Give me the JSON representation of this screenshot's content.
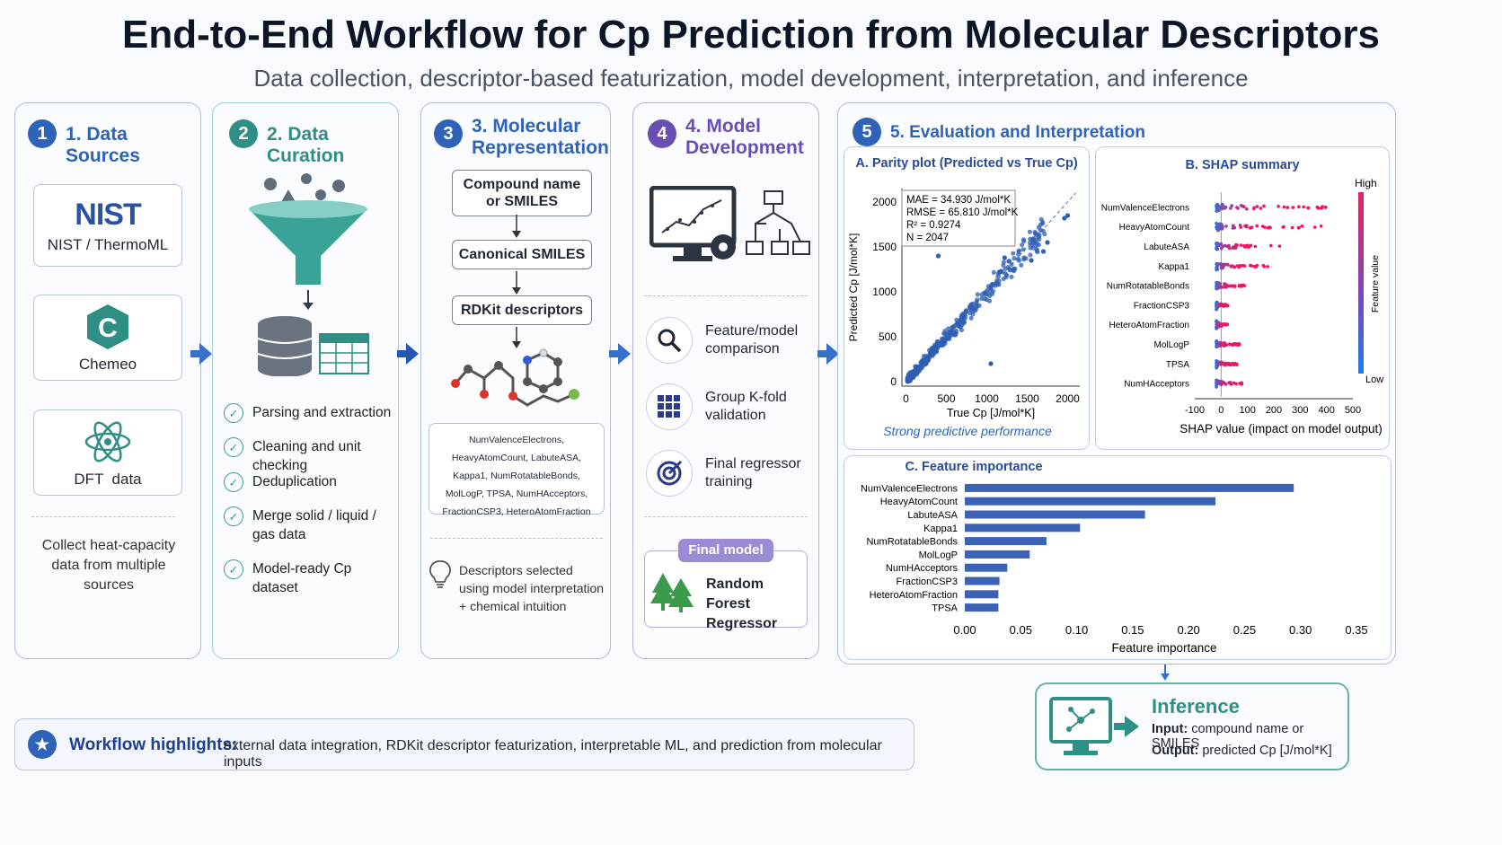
{
  "header": {
    "title": "End-to-End Workflow for Cp Prediction from Molecular Descriptors",
    "subtitle": "Data collection, descriptor-based featurization, model development, interpretation, and inference"
  },
  "colors": {
    "blue": "#2e63b8",
    "teal": "#2f8f85",
    "purple": "#6a4fb3",
    "arrow": "#3570c9"
  },
  "panel1": {
    "badge": "1",
    "title": "1. Data Sources",
    "sources": [
      {
        "logo": "NIST",
        "label": "NIST / ThermoML"
      },
      {
        "logo": "C",
        "label": "Chemeo"
      },
      {
        "label": "DFT  data"
      }
    ],
    "note": "Collect heat-capacity data from multiple sources"
  },
  "panel2": {
    "badge": "2",
    "title": "2. Data Curation",
    "steps": [
      "Parsing and extraction",
      "Cleaning and unit checking",
      "Deduplication",
      "Merge solid / liquid / gas data",
      "Model-ready Cp dataset"
    ]
  },
  "panel3": {
    "badge": "3",
    "title": "3. Molecular Representation",
    "boxes": [
      "Compound name or SMILES",
      "Canonical SMILES",
      "RDKit descriptors"
    ],
    "descriptors": "NumValenceElectrons, HeavyAtomCount, LabuteASA, Kappa1, NumRotatableBonds, MolLogP, TPSA, NumHAcceptors, FractionCSP3, HeteroAtomFraction",
    "note": "Descriptors selected using model interpretation + chemical intuition"
  },
  "panel4": {
    "badge": "4",
    "title": "4. Model Development",
    "items": [
      "Feature/model comparison",
      "Group K-fold validation",
      "Final regressor training"
    ],
    "final_label": "Final model",
    "final_model": "Random Forest Regressor"
  },
  "panel5": {
    "badge": "5",
    "title": "5. Evaluation and Interpretation",
    "parity": {
      "title": "A. Parity plot (Predicted vs True Cp)",
      "xlabel": "True Cp [J/mol*K]",
      "ylabel": "Predicted Cp [J/mol*K]",
      "stats": [
        "MAE   = 34.930 J/mol*K",
        "RMSE = 65.810 J/mol*K",
        "R²    = 0.9274",
        "N      = 2047"
      ],
      "caption": "Strong predictive performance"
    },
    "shap": {
      "title": "B. SHAP summary",
      "xlabel": "SHAP value (impact on model output)",
      "high": "High",
      "low": "Low",
      "bar_label": "Feature value"
    },
    "importance": {
      "title": "C. Feature importance",
      "xlabel": "Feature importance"
    }
  },
  "chart_data": [
    {
      "type": "scatter",
      "title": "A. Parity plot (Predicted vs True Cp)",
      "xlabel": "True Cp [J/mol*K]",
      "ylabel": "Predicted Cp [J/mol*K]",
      "xlim": [
        -50,
        2150
      ],
      "ylim": [
        -50,
        2150
      ],
      "xticks": [
        0,
        500,
        1000,
        1500,
        2000
      ],
      "yticks": [
        0,
        500,
        1000,
        1500,
        2000
      ],
      "diagonal": true,
      "stats": {
        "MAE": 34.93,
        "RMSE": 65.81,
        "R2": 0.9274,
        "N": 2047
      }
    },
    {
      "type": "scatter",
      "title": "B. SHAP summary",
      "xlabel": "SHAP value (impact on model output)",
      "xlim": [
        -100,
        500
      ],
      "xticks": [
        -100,
        0,
        100,
        200,
        300,
        400,
        500
      ],
      "features": [
        "NumValenceElectrons",
        "HeavyAtomCount",
        "LabuteASA",
        "Kappa1",
        "NumRotatableBonds",
        "FractionCSP3",
        "HeteroAtomFraction",
        "MolLogP",
        "TPSA",
        "NumHAcceptors"
      ],
      "max_shap": [
        440,
        380,
        250,
        180,
        100,
        30,
        30,
        70,
        60,
        100
      ]
    },
    {
      "type": "bar",
      "title": "C. Feature importance",
      "xlabel": "Feature importance",
      "orientation": "horizontal",
      "categories": [
        "NumValenceElectrons",
        "HeavyAtomCount",
        "LabuteASA",
        "Kappa1",
        "NumRotatableBonds",
        "MolLogP",
        "NumHAcceptors",
        "FractionCSP3",
        "HeteroAtomFraction",
        "TPSA"
      ],
      "values": [
        0.294,
        0.224,
        0.161,
        0.103,
        0.073,
        0.058,
        0.038,
        0.031,
        0.03,
        0.03
      ],
      "xlim": [
        0,
        0.35
      ],
      "xticks": [
        "0.00",
        "0.05",
        "0.10",
        "0.15",
        "0.20",
        "0.25",
        "0.30",
        "0.35"
      ]
    }
  ],
  "inference": {
    "title": "Inference",
    "input_label": "Input:",
    "input": " compound name or SMILES",
    "output_label": "Output:",
    "output": " predicted Cp [J/mol*K]"
  },
  "footer": {
    "label": "Workflow highlights:",
    "text": "external data integration, RDKit descriptor featurization, interpretable ML, and prediction from molecular inputs"
  }
}
